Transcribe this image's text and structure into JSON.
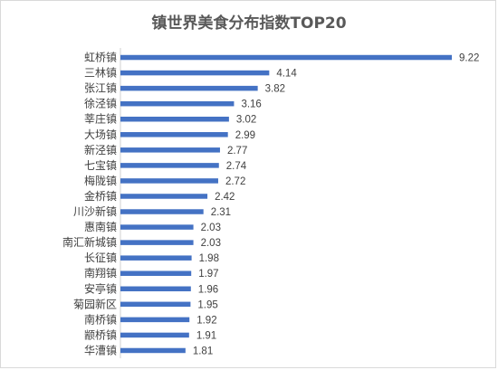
{
  "chart_data": {
    "type": "bar",
    "orientation": "horizontal",
    "title": "镇世界美食分布指数TOP20",
    "xlabel": "",
    "ylabel": "",
    "xlim": [
      0,
      9.22
    ],
    "grid": false,
    "legend": "none",
    "bar_color": "#4472c4",
    "categories": [
      "虹桥镇",
      "三林镇",
      "张江镇",
      "徐泾镇",
      "莘庄镇",
      "大场镇",
      "新泾镇",
      "七宝镇",
      "梅陇镇",
      "金桥镇",
      "川沙新镇",
      "惠南镇",
      "南汇新城镇",
      "长征镇",
      "南翔镇",
      "安亭镇",
      "菊园新区",
      "南桥镇",
      "颛桥镇",
      "华漕镇"
    ],
    "values": [
      9.22,
      4.14,
      3.82,
      3.16,
      3.02,
      2.99,
      2.77,
      2.74,
      2.72,
      2.42,
      2.31,
      2.03,
      2.03,
      1.98,
      1.97,
      1.96,
      1.95,
      1.92,
      1.91,
      1.81
    ]
  }
}
